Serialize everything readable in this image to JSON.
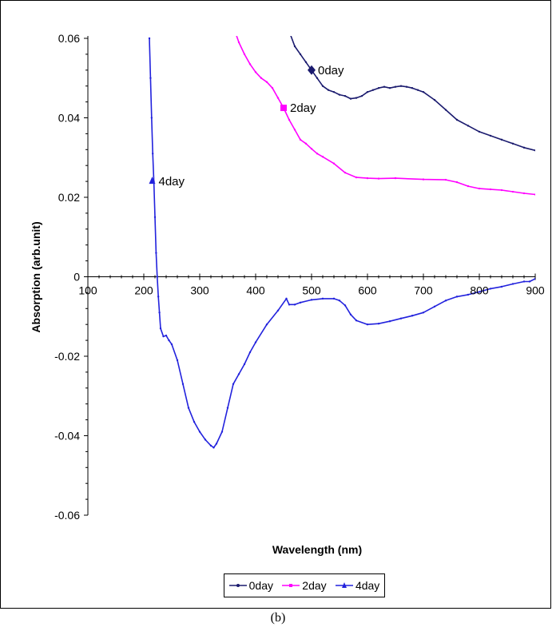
{
  "caption": "(b)",
  "chart_data": {
    "type": "line",
    "title": "",
    "xlabel": "Wavelength (nm)",
    "ylabel": "Absorption (arb.unit)",
    "xlim": [
      100,
      900
    ],
    "ylim": [
      -0.06,
      0.06
    ],
    "x_ticks": [
      "100",
      "200",
      "300",
      "400",
      "500",
      "600",
      "700",
      "800",
      "900"
    ],
    "y_ticks": [
      "0.06",
      "0.04",
      "0.02",
      "0",
      "-0.02",
      "-0.04",
      "-0.06"
    ],
    "legend_position": "bottom",
    "grid": false,
    "series": [
      {
        "name": "0day",
        "color": "#1a1a6e",
        "label_at": [
          500,
          0.052
        ],
        "x": [
          462,
          470,
          480,
          490,
          500,
          510,
          520,
          530,
          540,
          550,
          560,
          570,
          580,
          590,
          600,
          610,
          620,
          630,
          640,
          650,
          660,
          670,
          680,
          690,
          700,
          720,
          740,
          760,
          780,
          800,
          820,
          840,
          860,
          880,
          900
        ],
        "y": [
          0.061,
          0.058,
          0.056,
          0.054,
          0.052,
          0.05,
          0.048,
          0.047,
          0.0465,
          0.0458,
          0.0455,
          0.0448,
          0.045,
          0.0455,
          0.0465,
          0.047,
          0.0475,
          0.0478,
          0.0475,
          0.0478,
          0.048,
          0.0478,
          0.0475,
          0.047,
          0.0465,
          0.0445,
          0.042,
          0.0395,
          0.038,
          0.0365,
          0.0355,
          0.0345,
          0.0335,
          0.0325,
          0.0318
        ]
      },
      {
        "name": "2day",
        "color": "#ff00ff",
        "label_at": [
          450,
          0.0425
        ],
        "x": [
          365,
          370,
          380,
          390,
          400,
          410,
          420,
          430,
          440,
          450,
          460,
          470,
          480,
          490,
          500,
          510,
          520,
          540,
          560,
          580,
          600,
          620,
          650,
          700,
          740,
          760,
          780,
          800,
          820,
          840,
          860,
          880,
          900
        ],
        "y": [
          0.061,
          0.059,
          0.056,
          0.0535,
          0.0515,
          0.05,
          0.049,
          0.0475,
          0.045,
          0.0425,
          0.0395,
          0.037,
          0.0345,
          0.0335,
          0.0322,
          0.031,
          0.0302,
          0.0285,
          0.0262,
          0.025,
          0.0248,
          0.0247,
          0.0248,
          0.0245,
          0.0244,
          0.0238,
          0.0228,
          0.0222,
          0.022,
          0.0218,
          0.0214,
          0.021,
          0.0207
        ]
      },
      {
        "name": "4day",
        "color": "#2222dd",
        "label_at": [
          215,
          0.024
        ],
        "x": [
          210,
          212,
          214,
          216,
          218,
          220,
          222,
          224,
          226,
          228,
          230,
          235,
          240,
          245,
          250,
          260,
          270,
          280,
          290,
          300,
          310,
          320,
          325,
          330,
          340,
          350,
          360,
          370,
          380,
          390,
          400,
          420,
          440,
          455,
          460,
          470,
          480,
          500,
          520,
          540,
          550,
          560,
          570,
          580,
          600,
          620,
          640,
          660,
          680,
          700,
          720,
          740,
          760,
          780,
          800,
          820,
          840,
          860,
          880,
          890,
          900
        ],
        "y": [
          0.06,
          0.05,
          0.04,
          0.031,
          0.024,
          0.015,
          0.006,
          0.0,
          -0.005,
          -0.009,
          -0.013,
          -0.015,
          -0.0148,
          -0.016,
          -0.017,
          -0.021,
          -0.027,
          -0.033,
          -0.0365,
          -0.039,
          -0.041,
          -0.0425,
          -0.043,
          -0.042,
          -0.039,
          -0.033,
          -0.027,
          -0.0245,
          -0.022,
          -0.019,
          -0.0165,
          -0.012,
          -0.0085,
          -0.0055,
          -0.007,
          -0.007,
          -0.0065,
          -0.0058,
          -0.0055,
          -0.0055,
          -0.006,
          -0.0072,
          -0.0095,
          -0.011,
          -0.012,
          -0.0118,
          -0.0112,
          -0.0105,
          -0.0098,
          -0.009,
          -0.0075,
          -0.006,
          -0.005,
          -0.0045,
          -0.0038,
          -0.003,
          -0.0025,
          -0.0018,
          -0.0012,
          -0.0012,
          -0.0005
        ]
      }
    ]
  }
}
